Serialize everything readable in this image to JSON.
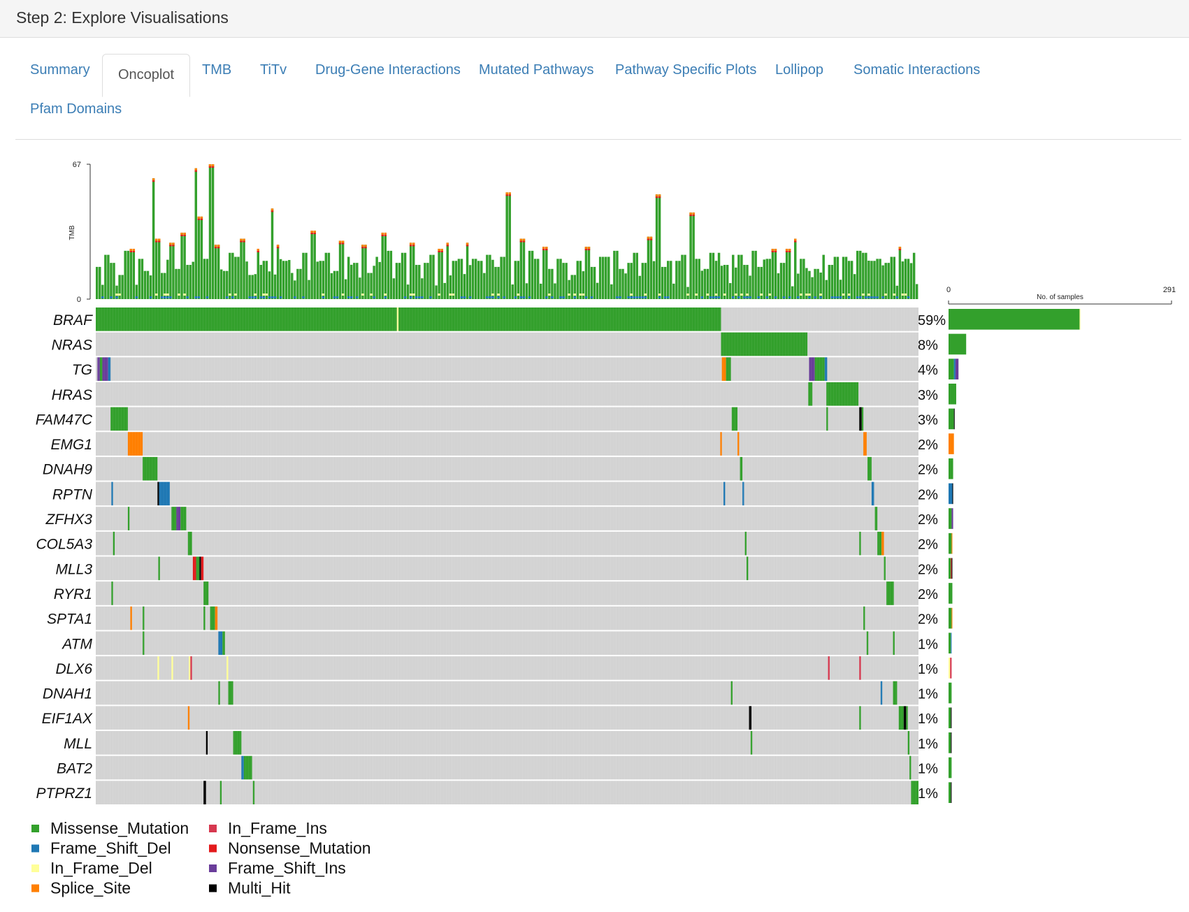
{
  "header": {
    "title": "Step 2: Explore Visualisations"
  },
  "tabs": [
    {
      "label": "Summary",
      "active": false
    },
    {
      "label": "Oncoplot",
      "active": true
    },
    {
      "label": "TMB",
      "active": false
    },
    {
      "label": "TiTv",
      "active": false
    },
    {
      "label": "Drug-Gene Interactions",
      "active": false
    },
    {
      "label": "Mutated Pathways",
      "active": false
    },
    {
      "label": "Pathway Specific Plots",
      "active": false
    },
    {
      "label": "Lollipop",
      "active": false
    },
    {
      "label": "Somatic Interactions",
      "active": false
    },
    {
      "label": "Pfam Domains",
      "active": false
    }
  ],
  "colors": {
    "Missense_Mutation": "#33a02c",
    "Frame_Shift_Del": "#1f78b4",
    "In_Frame_Del": "#ffff99",
    "Splice_Site": "#ff7f00",
    "In_Frame_Ins": "#d6384f",
    "Nonsense_Mutation": "#e31a1c",
    "Frame_Shift_Ins": "#6a3d9a",
    "Multi_Hit": "#000000",
    "background": "#d3d3d3"
  },
  "chart_data": {
    "type": "heatmap",
    "tmb_axis": {
      "label": "TMB",
      "min_label": "0",
      "max_label": "67",
      "ylim": [
        0,
        67
      ]
    },
    "sample_count_axis": {
      "label": "No. of samples",
      "min_label": "0",
      "max_label": "291",
      "xlim": [
        0,
        291
      ]
    },
    "genes": [
      {
        "name": "BRAF",
        "pct": "59%",
        "samples": 172,
        "composition": [
          [
            "Missense_Mutation",
            171
          ],
          [
            "In_Frame_Del",
            1
          ]
        ]
      },
      {
        "name": "NRAS",
        "pct": "8%",
        "samples": 23,
        "composition": [
          [
            "Missense_Mutation",
            23
          ]
        ]
      },
      {
        "name": "TG",
        "pct": "4%",
        "samples": 13,
        "composition": [
          [
            "Missense_Mutation",
            7
          ],
          [
            "Frame_Shift_Del",
            2
          ],
          [
            "Frame_Shift_Ins",
            4
          ]
        ]
      },
      {
        "name": "HRAS",
        "pct": "3%",
        "samples": 10,
        "composition": [
          [
            "Missense_Mutation",
            10
          ]
        ]
      },
      {
        "name": "FAM47C",
        "pct": "3%",
        "samples": 8,
        "composition": [
          [
            "Missense_Mutation",
            7
          ],
          [
            "Multi_Hit",
            1
          ]
        ]
      },
      {
        "name": "EMG1",
        "pct": "2%",
        "samples": 7,
        "composition": [
          [
            "Splice_Site",
            7
          ]
        ]
      },
      {
        "name": "DNAH9",
        "pct": "2%",
        "samples": 6,
        "composition": [
          [
            "Missense_Mutation",
            6
          ]
        ]
      },
      {
        "name": "RPTN",
        "pct": "2%",
        "samples": 6,
        "composition": [
          [
            "Frame_Shift_Del",
            5
          ],
          [
            "Multi_Hit",
            1
          ]
        ]
      },
      {
        "name": "ZFHX3",
        "pct": "2%",
        "samples": 6,
        "composition": [
          [
            "Missense_Mutation",
            4
          ],
          [
            "Frame_Shift_Ins",
            2
          ]
        ]
      },
      {
        "name": "COL5A3",
        "pct": "2%",
        "samples": 5,
        "composition": [
          [
            "Missense_Mutation",
            4
          ],
          [
            "Splice_Site",
            1
          ]
        ]
      },
      {
        "name": "MLL3",
        "pct": "2%",
        "samples": 5,
        "composition": [
          [
            "Missense_Mutation",
            3
          ],
          [
            "Nonsense_Mutation",
            1
          ],
          [
            "Multi_Hit",
            1
          ]
        ]
      },
      {
        "name": "RYR1",
        "pct": "2%",
        "samples": 5,
        "composition": [
          [
            "Missense_Mutation",
            5
          ]
        ]
      },
      {
        "name": "SPTA1",
        "pct": "2%",
        "samples": 5,
        "composition": [
          [
            "Missense_Mutation",
            4
          ],
          [
            "Splice_Site",
            1
          ]
        ]
      },
      {
        "name": "ATM",
        "pct": "1%",
        "samples": 4,
        "composition": [
          [
            "Missense_Mutation",
            3
          ],
          [
            "Frame_Shift_Del",
            1
          ]
        ]
      },
      {
        "name": "DLX6",
        "pct": "1%",
        "samples": 4,
        "composition": [
          [
            "In_Frame_Del",
            2
          ],
          [
            "In_Frame_Ins",
            2
          ]
        ]
      },
      {
        "name": "DNAH1",
        "pct": "1%",
        "samples": 4,
        "composition": [
          [
            "Missense_Mutation",
            4
          ]
        ]
      },
      {
        "name": "EIF1AX",
        "pct": "1%",
        "samples": 4,
        "composition": [
          [
            "Missense_Mutation",
            3
          ],
          [
            "Multi_Hit",
            1
          ]
        ]
      },
      {
        "name": "MLL",
        "pct": "1%",
        "samples": 4,
        "composition": [
          [
            "Missense_Mutation",
            3
          ],
          [
            "Multi_Hit",
            1
          ]
        ]
      },
      {
        "name": "BAT2",
        "pct": "1%",
        "samples": 4,
        "composition": [
          [
            "Missense_Mutation",
            4
          ]
        ]
      },
      {
        "name": "PTPRZ1",
        "pct": "1%",
        "samples": 4,
        "composition": [
          [
            "Missense_Mutation",
            3
          ],
          [
            "Multi_Hit",
            1
          ]
        ]
      }
    ],
    "tmb_peaks": [
      [
        0.003,
        16
      ],
      [
        0.012,
        22
      ],
      [
        0.02,
        18
      ],
      [
        0.029,
        12
      ],
      [
        0.036,
        24
      ],
      [
        0.043,
        25
      ],
      [
        0.052,
        20
      ],
      [
        0.061,
        14
      ],
      [
        0.069,
        60
      ],
      [
        0.074,
        30
      ],
      [
        0.082,
        13
      ],
      [
        0.09,
        28
      ],
      [
        0.099,
        15
      ],
      [
        0.106,
        33
      ],
      [
        0.113,
        17
      ],
      [
        0.121,
        65
      ],
      [
        0.125,
        41
      ],
      [
        0.131,
        20
      ],
      [
        0.138,
        67
      ],
      [
        0.146,
        27
      ],
      [
        0.155,
        14
      ],
      [
        0.162,
        23
      ],
      [
        0.17,
        21
      ],
      [
        0.178,
        30
      ],
      [
        0.187,
        12
      ],
      [
        0.196,
        25
      ],
      [
        0.205,
        19
      ],
      [
        0.213,
        45
      ],
      [
        0.22,
        27
      ],
      [
        0.228,
        19
      ],
      [
        0.237,
        13
      ],
      [
        0.246,
        15
      ],
      [
        0.254,
        23
      ],
      [
        0.264,
        34
      ],
      [
        0.272,
        19
      ],
      [
        0.28,
        23
      ],
      [
        0.289,
        14
      ],
      [
        0.298,
        29
      ],
      [
        0.306,
        21
      ],
      [
        0.315,
        18
      ],
      [
        0.324,
        27
      ],
      [
        0.331,
        13
      ],
      [
        0.34,
        21
      ],
      [
        0.348,
        33
      ],
      [
        0.357,
        24
      ],
      [
        0.365,
        18
      ],
      [
        0.374,
        23
      ],
      [
        0.382,
        28
      ],
      [
        0.391,
        17
      ],
      [
        0.399,
        18
      ],
      [
        0.408,
        22
      ],
      [
        0.417,
        25
      ],
      [
        0.426,
        28
      ],
      [
        0.434,
        19
      ],
      [
        0.441,
        20
      ],
      [
        0.45,
        28
      ],
      [
        0.458,
        20
      ],
      [
        0.467,
        19
      ],
      [
        0.476,
        22
      ],
      [
        0.485,
        16
      ],
      [
        0.494,
        21
      ],
      [
        0.501,
        53
      ],
      [
        0.51,
        19
      ],
      [
        0.518,
        30
      ],
      [
        0.527,
        24
      ],
      [
        0.535,
        20
      ],
      [
        0.545,
        26
      ],
      [
        0.553,
        15
      ],
      [
        0.562,
        20
      ],
      [
        0.57,
        18
      ],
      [
        0.579,
        12
      ],
      [
        0.587,
        19
      ],
      [
        0.596,
        26
      ],
      [
        0.604,
        16
      ],
      [
        0.613,
        21
      ],
      [
        0.621,
        21
      ],
      [
        0.63,
        24
      ],
      [
        0.638,
        15
      ],
      [
        0.647,
        18
      ],
      [
        0.656,
        23
      ],
      [
        0.664,
        18
      ],
      [
        0.671,
        31
      ],
      [
        0.682,
        52
      ],
      [
        0.688,
        16
      ],
      [
        0.697,
        19
      ],
      [
        0.706,
        19
      ],
      [
        0.714,
        22
      ],
      [
        0.723,
        43
      ],
      [
        0.731,
        20
      ],
      [
        0.74,
        15
      ],
      [
        0.748,
        23
      ],
      [
        0.756,
        23
      ],
      [
        0.764,
        17
      ],
      [
        0.773,
        22
      ],
      [
        0.781,
        22
      ],
      [
        0.79,
        17
      ],
      [
        0.798,
        24
      ],
      [
        0.806,
        16
      ],
      [
        0.815,
        20
      ],
      [
        0.824,
        25
      ],
      [
        0.832,
        18
      ],
      [
        0.841,
        25
      ],
      [
        0.849,
        30
      ],
      [
        0.858,
        20
      ],
      [
        0.866,
        14
      ],
      [
        0.874,
        15
      ],
      [
        0.883,
        22
      ],
      [
        0.891,
        17
      ],
      [
        0.9,
        21
      ],
      [
        0.908,
        21
      ],
      [
        0.916,
        19
      ],
      [
        0.925,
        24
      ],
      [
        0.934,
        23
      ],
      [
        0.942,
        19
      ],
      [
        0.951,
        20
      ],
      [
        0.959,
        18
      ],
      [
        0.967,
        21
      ],
      [
        0.976,
        26
      ],
      [
        0.984,
        20
      ],
      [
        0.993,
        23
      ]
    ],
    "legend": [
      "Missense_Mutation",
      "Frame_Shift_Del",
      "In_Frame_Del",
      "Splice_Site",
      "In_Frame_Ins",
      "Nonsense_Mutation",
      "Frame_Shift_Ins",
      "Multi_Hit"
    ]
  }
}
